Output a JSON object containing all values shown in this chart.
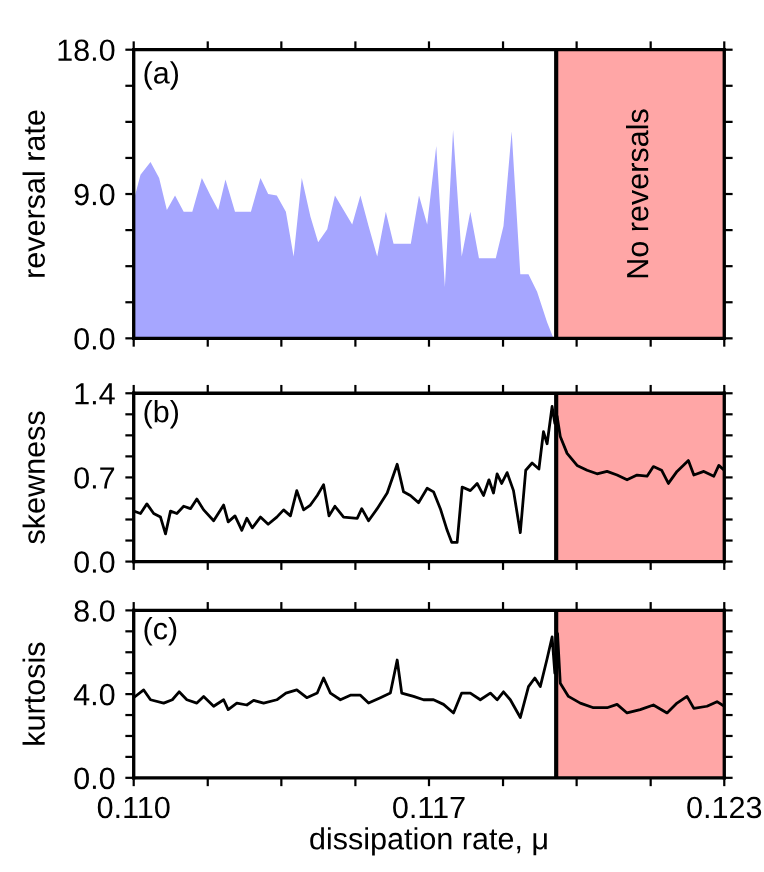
{
  "chart_data": [
    {
      "type": "area",
      "ylabel": "reversal rate",
      "annotations": [
        "(a)"
      ],
      "tick_labels": "y",
      "xlim": [
        0.11,
        0.123
      ],
      "xticks": [
        {
          "value": 0.11,
          "label": null
        },
        {
          "value": 0.11163,
          "label": null
        },
        {
          "value": 0.11325,
          "label": null
        },
        {
          "value": 0.11488,
          "label": null
        },
        {
          "value": 0.1165,
          "label": null
        },
        {
          "value": 0.11813,
          "label": null
        },
        {
          "value": 0.11975,
          "label": null
        },
        {
          "value": 0.12138,
          "label": null
        },
        {
          "value": 0.123,
          "label": null
        }
      ],
      "ylim": [
        0,
        18
      ],
      "yticks": [
        {
          "value": 0,
          "label": "0.0"
        },
        {
          "value": 2.25,
          "label": null
        },
        {
          "value": 4.5,
          "label": null
        },
        {
          "value": 6.75,
          "label": null
        },
        {
          "value": 9,
          "label": "9.0"
        },
        {
          "value": 11.25,
          "label": null
        },
        {
          "value": 13.5,
          "label": null
        },
        {
          "value": 15.75,
          "label": null
        },
        {
          "value": 18,
          "label": "18.0"
        }
      ],
      "bands": [
        {
          "axis": "x",
          "from": 0.1193,
          "to": 0.123,
          "label": "No reversals",
          "color": "#ffa6a6"
        }
      ],
      "ref_lines": [
        {
          "axis": "x",
          "value": 0.1193,
          "color": "#000000"
        }
      ],
      "series": [
        {
          "color": "#a6a6ff",
          "x": [
            0.11,
            0.11015,
            0.11037,
            0.11056,
            0.11073,
            0.11091,
            0.1111,
            0.11129,
            0.1115,
            0.11169,
            0.11186,
            0.11202,
            0.11223,
            0.11258,
            0.11279,
            0.11296,
            0.11315,
            0.11335,
            0.11352,
            0.1137,
            0.11389,
            0.11406,
            0.11426,
            0.11443,
            0.11462,
            0.11481,
            0.11499,
            0.11517,
            0.11536,
            0.11555,
            0.11572,
            0.1161,
            0.11628,
            0.11646,
            0.11666,
            0.11685,
            0.11703,
            0.11722,
            0.11741,
            0.1176,
            0.11797,
            0.11814,
            0.11832,
            0.11851,
            0.11869,
            0.11888,
            0.1191,
            0.11924
          ],
          "values": [
            8.6,
            10.2,
            11.0,
            10.0,
            8.0,
            8.9,
            7.9,
            7.9,
            10.0,
            8.9,
            8.0,
            9.9,
            7.9,
            7.9,
            10.0,
            9.0,
            8.9,
            7.9,
            5.1,
            10.0,
            7.6,
            6.0,
            6.8,
            8.9,
            8.0,
            7.1,
            8.9,
            7.0,
            5.1,
            7.9,
            5.9,
            5.9,
            8.9,
            7.1,
            12.0,
            3.2,
            13.0,
            5.1,
            7.9,
            5.0,
            5.0,
            7.0,
            12.9,
            4.0,
            4.0,
            2.9,
            1.0,
            0
          ]
        }
      ]
    },
    {
      "type": "line",
      "ylabel": "skewness",
      "annotations": [
        "(b)"
      ],
      "tick_labels": "y",
      "xlim": [
        0.11,
        0.123
      ],
      "xticks": [
        {
          "value": 0.11,
          "label": null
        },
        {
          "value": 0.11163,
          "label": null
        },
        {
          "value": 0.11325,
          "label": null
        },
        {
          "value": 0.11488,
          "label": null
        },
        {
          "value": 0.1165,
          "label": null
        },
        {
          "value": 0.11813,
          "label": null
        },
        {
          "value": 0.11975,
          "label": null
        },
        {
          "value": 0.12138,
          "label": null
        },
        {
          "value": 0.123,
          "label": null
        }
      ],
      "ylim": [
        0,
        1.4
      ],
      "yticks": [
        {
          "value": 0,
          "label": "0.0"
        },
        {
          "value": 0.175,
          "label": null
        },
        {
          "value": 0.35,
          "label": null
        },
        {
          "value": 0.525,
          "label": null
        },
        {
          "value": 0.7,
          "label": "0.7"
        },
        {
          "value": 0.875,
          "label": null
        },
        {
          "value": 1.05,
          "label": null
        },
        {
          "value": 1.225,
          "label": null
        },
        {
          "value": 1.4,
          "label": "1.4"
        }
      ],
      "bands": [
        {
          "axis": "x",
          "from": 0.1193,
          "to": 0.123,
          "color": "#ffa6a6"
        }
      ],
      "ref_lines": [
        {
          "axis": "x",
          "value": 0.1193,
          "color": "#000000"
        }
      ],
      "series": [
        {
          "color": "#000000",
          "x": [
            0.11,
            0.11015,
            0.11029,
            0.11044,
            0.11059,
            0.1107,
            0.11081,
            0.11095,
            0.1111,
            0.11125,
            0.11139,
            0.11154,
            0.11176,
            0.11198,
            0.11208,
            0.11223,
            0.11238,
            0.11249,
            0.11261,
            0.11279,
            0.11296,
            0.11315,
            0.1133,
            0.11345,
            0.11359,
            0.11374,
            0.11389,
            0.11404,
            0.11418,
            0.1143,
            0.11443,
            0.11462,
            0.11492,
            0.11502,
            0.11517,
            0.11536,
            0.11558,
            0.1158,
            0.11594,
            0.11609,
            0.11627,
            0.11646,
            0.1166,
            0.11675,
            0.1169,
            0.117,
            0.11712,
            0.11723,
            0.11741,
            0.11756,
            0.1177,
            0.11782,
            0.11792,
            0.118,
            0.1181,
            0.11822,
            0.11836,
            0.11851,
            0.11863,
            0.11877,
            0.11892,
            0.11902,
            0.1191,
            0.11921,
            0.11927,
            0.11932,
            0.11939,
            0.11954,
            0.11976,
            0.11998,
            0.1202,
            0.12042,
            0.12064,
            0.12086,
            0.12108,
            0.1213,
            0.12144,
            0.12162,
            0.12177,
            0.12196,
            0.12221,
            0.12233,
            0.12255,
            0.12277,
            0.12288,
            0.123
          ],
          "values": [
            0.42,
            0.4,
            0.48,
            0.4,
            0.37,
            0.23,
            0.42,
            0.4,
            0.46,
            0.44,
            0.52,
            0.43,
            0.34,
            0.47,
            0.33,
            0.38,
            0.26,
            0.36,
            0.28,
            0.37,
            0.31,
            0.37,
            0.43,
            0.38,
            0.59,
            0.43,
            0.47,
            0.55,
            0.64,
            0.38,
            0.46,
            0.37,
            0.36,
            0.44,
            0.34,
            0.44,
            0.57,
            0.81,
            0.58,
            0.55,
            0.49,
            0.61,
            0.58,
            0.44,
            0.26,
            0.16,
            0.16,
            0.62,
            0.59,
            0.65,
            0.55,
            0.68,
            0.57,
            0.73,
            0.65,
            0.74,
            0.59,
            0.24,
            0.76,
            0.82,
            0.77,
            1.08,
            0.98,
            1.29,
            1.15,
            1.21,
            1.04,
            0.9,
            0.8,
            0.76,
            0.73,
            0.75,
            0.72,
            0.68,
            0.72,
            0.71,
            0.79,
            0.76,
            0.65,
            0.75,
            0.84,
            0.72,
            0.75,
            0.71,
            0.8,
            0.76
          ]
        }
      ]
    },
    {
      "type": "line",
      "ylabel": "kurtosis",
      "xlabel": "dissipation rate, μ",
      "annotations": [
        "(c)"
      ],
      "xlim": [
        0.11,
        0.123
      ],
      "xticks": [
        {
          "value": 0.11,
          "label": "0.110"
        },
        {
          "value": 0.11163,
          "label": null
        },
        {
          "value": 0.11325,
          "label": null
        },
        {
          "value": 0.11488,
          "label": null
        },
        {
          "value": 0.1165,
          "label": "0.117"
        },
        {
          "value": 0.11813,
          "label": null
        },
        {
          "value": 0.11975,
          "label": null
        },
        {
          "value": 0.12138,
          "label": null
        },
        {
          "value": 0.123,
          "label": "0.123"
        }
      ],
      "ylim": [
        0,
        8
      ],
      "yticks": [
        {
          "value": 0,
          "label": "0.0"
        },
        {
          "value": 1,
          "label": null
        },
        {
          "value": 2,
          "label": null
        },
        {
          "value": 3,
          "label": null
        },
        {
          "value": 4,
          "label": "4.0"
        },
        {
          "value": 5,
          "label": null
        },
        {
          "value": 6,
          "label": null
        },
        {
          "value": 7,
          "label": null
        },
        {
          "value": 8,
          "label": "8.0"
        }
      ],
      "bands": [
        {
          "axis": "x",
          "from": 0.1193,
          "to": 0.123,
          "color": "#ffa6a6"
        }
      ],
      "ref_lines": [
        {
          "axis": "x",
          "value": 0.1193,
          "color": "#000000"
        }
      ],
      "series": [
        {
          "color": "#000000",
          "x": [
            0.11,
            0.11022,
            0.11037,
            0.11066,
            0.11085,
            0.111,
            0.11117,
            0.11139,
            0.11154,
            0.11176,
            0.11198,
            0.11208,
            0.11227,
            0.11249,
            0.11264,
            0.11286,
            0.11315,
            0.11335,
            0.11359,
            0.11381,
            0.11404,
            0.11418,
            0.11433,
            0.11455,
            0.11477,
            0.11499,
            0.11517,
            0.11543,
            0.11565,
            0.1158,
            0.1159,
            0.11616,
            0.11638,
            0.1166,
            0.11682,
            0.11704,
            0.11722,
            0.11741,
            0.11763,
            0.11785,
            0.118,
            0.11814,
            0.11829,
            0.11851,
            0.11869,
            0.11883,
            0.11895,
            0.1191,
            0.11921,
            0.11927,
            0.11933,
            0.11939,
            0.11957,
            0.11983,
            0.12012,
            0.12042,
            0.12064,
            0.12086,
            0.12115,
            0.12144,
            0.12174,
            0.12196,
            0.12218,
            0.12233,
            0.12262,
            0.12284,
            0.123
          ],
          "values": [
            3.83,
            4.2,
            3.73,
            3.57,
            3.73,
            4.11,
            3.73,
            3.57,
            3.89,
            3.42,
            3.73,
            3.26,
            3.57,
            3.48,
            3.7,
            3.57,
            3.73,
            4.05,
            4.2,
            3.83,
            4.05,
            4.77,
            4.05,
            3.73,
            3.95,
            3.95,
            3.57,
            3.83,
            4.05,
            5.63,
            4.05,
            3.89,
            3.73,
            3.73,
            3.51,
            3.1,
            4.05,
            4.05,
            3.73,
            4.05,
            3.73,
            4.11,
            3.73,
            2.88,
            4.36,
            4.77,
            4.36,
            5.69,
            6.73,
            5.0,
            6.89,
            4.52,
            3.89,
            3.57,
            3.35,
            3.35,
            3.51,
            3.1,
            3.26,
            3.48,
            3.1,
            3.57,
            3.89,
            3.32,
            3.42,
            3.64,
            3.42
          ]
        }
      ]
    }
  ]
}
